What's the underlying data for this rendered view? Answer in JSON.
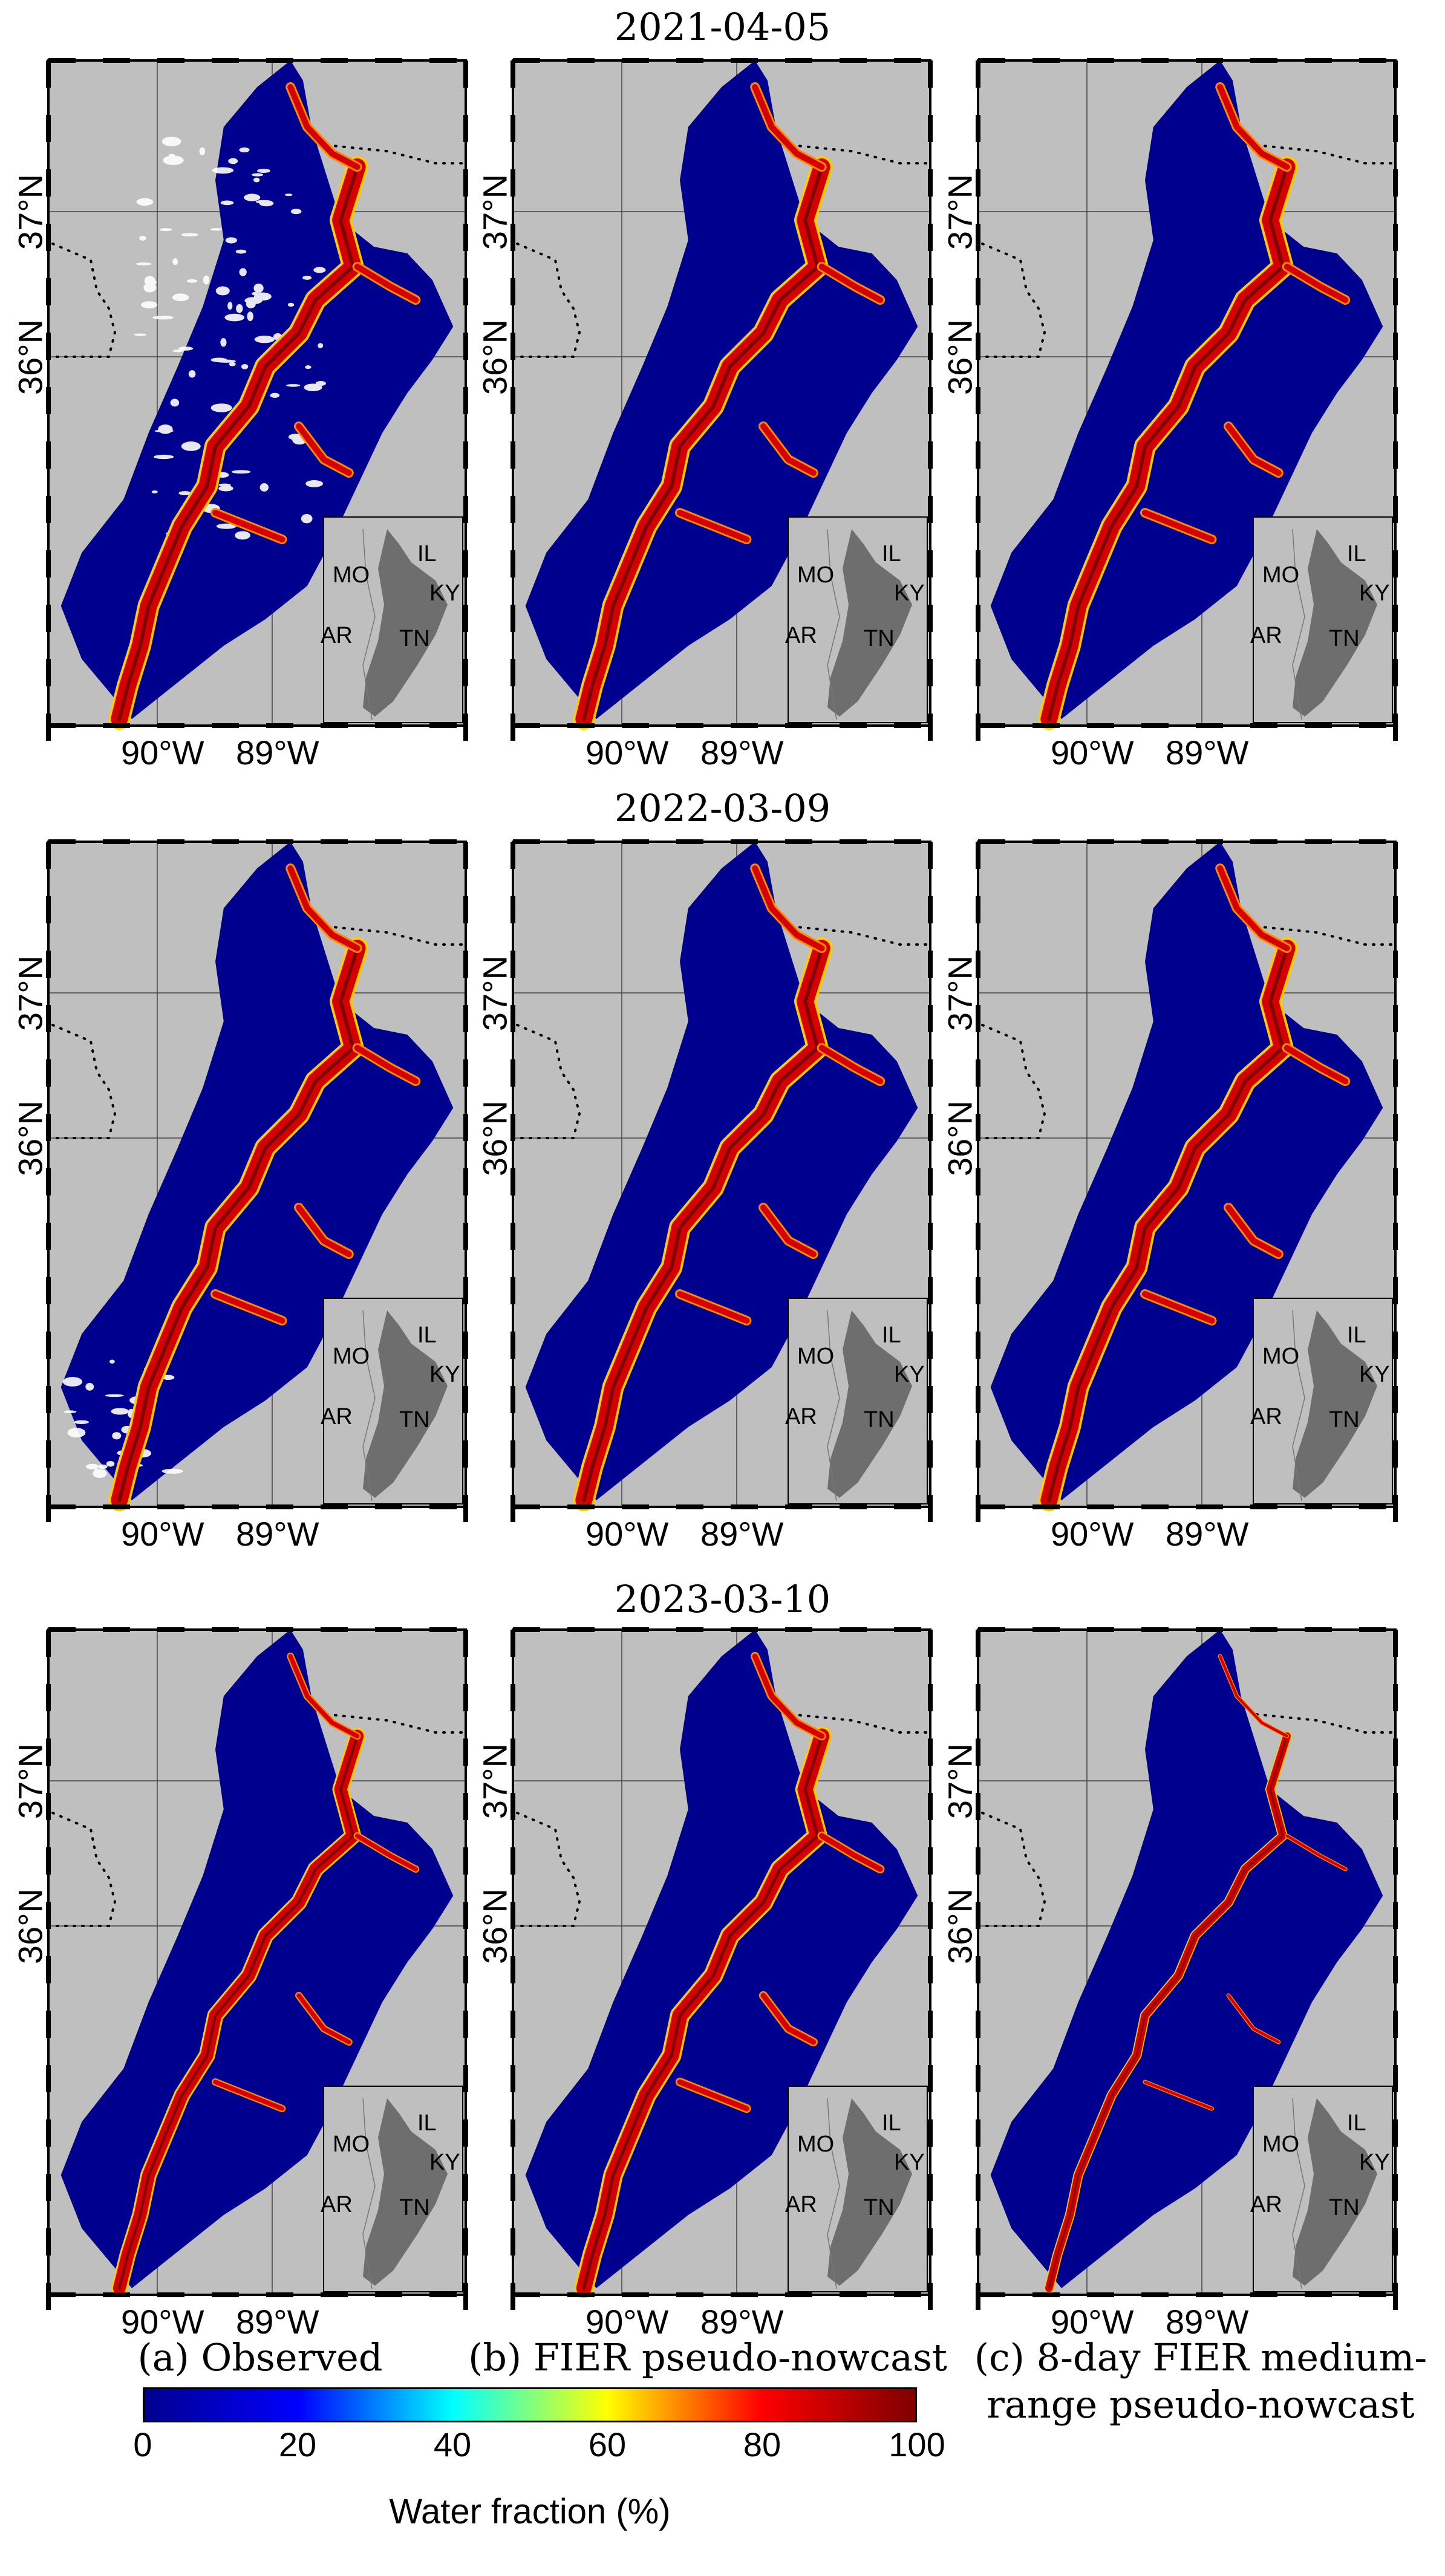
{
  "rows": [
    {
      "date": "2021-04-05"
    },
    {
      "date": "2022-03-09"
    },
    {
      "date": "2023-03-10"
    }
  ],
  "columns": [
    {
      "label": "(a) Observed"
    },
    {
      "label": "(b) FIER pseudo-nowcast"
    },
    {
      "label": "(c) 8-day FIER medium-range pseudo-nowcast"
    }
  ],
  "axes": {
    "lon_ticks": [
      "90°W",
      "89°W"
    ],
    "lat_ticks": [
      "37°N",
      "36°N"
    ]
  },
  "inset_states": [
    "IL",
    "MO",
    "KY",
    "AR",
    "TN"
  ],
  "colorbar": {
    "title": "Water fraction (%)",
    "ticks": [
      "0",
      "20",
      "40",
      "60",
      "80",
      "100"
    ],
    "colormap": [
      "#00008f",
      "#0000ff",
      "#00ffff",
      "#ffff00",
      "#ff0000",
      "#800000"
    ]
  },
  "colors": {
    "land": "#00008f",
    "background": "#bfbfbf",
    "inset_region": "#6e6e6e",
    "water": "#d40000"
  }
}
